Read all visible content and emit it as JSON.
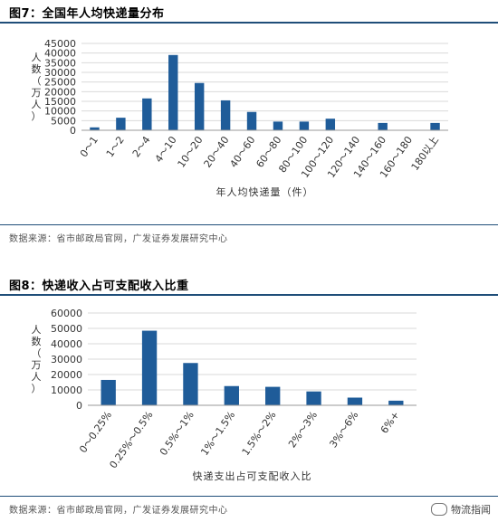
{
  "figures": [
    {
      "title": "图7：全国年人均快递量分布",
      "source": "数据来源：省市邮政局官网，广发证券发展研究中心"
    },
    {
      "title": "图8：快递收入占可支配收入比重",
      "source": "数据来源：省市邮政局官网，广发证券发展研究中心"
    }
  ],
  "watermark": {
    "text": "物流指闻",
    "icon": "wechat-icon"
  },
  "colors": {
    "bar": "#1f5c99",
    "rule": "#1f4e79",
    "grid": "#d9d9d9"
  },
  "chart_data": [
    {
      "type": "bar",
      "title": "图7：全国年人均快递量分布",
      "ylabel": "人数（万人）",
      "xlabel": "年人均快递量（件）",
      "ylim": [
        0,
        45000
      ],
      "yticks": [
        0,
        5000,
        10000,
        15000,
        20000,
        25000,
        30000,
        35000,
        40000,
        45000
      ],
      "grid": true,
      "categories": [
        "0～1",
        "1～2",
        "2～4",
        "4～10",
        "10～20",
        "20～40",
        "40～60",
        "60～80",
        "80～100",
        "100～120",
        "120～140",
        "140～160",
        "160～180",
        "180以上"
      ],
      "values": [
        1500,
        6500,
        16500,
        39000,
        24500,
        15500,
        9500,
        4500,
        4500,
        6000,
        0,
        3800,
        0,
        3800
      ]
    },
    {
      "type": "bar",
      "title": "图8：快递收入占可支配收入比重",
      "ylabel": "人数（万人）",
      "xlabel": "快递支出占可支配收入比",
      "ylim": [
        0,
        60000
      ],
      "yticks": [
        0,
        10000,
        20000,
        30000,
        40000,
        50000,
        60000
      ],
      "grid": true,
      "categories": [
        "0～0.25%",
        "0.25%～0.5%",
        "0.5%～1%",
        "1%～1.5%",
        "1.5%～2%",
        "2%～3%",
        "3%～6%",
        "6%+"
      ],
      "values": [
        16500,
        48500,
        27500,
        12500,
        12000,
        9000,
        5000,
        3000
      ]
    }
  ]
}
